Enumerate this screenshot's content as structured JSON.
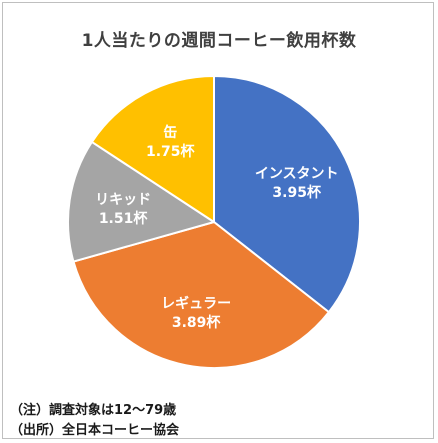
{
  "chart_data": {
    "type": "pie",
    "title": "1人当たりの週間コーヒー飲用杯数",
    "unit": "杯",
    "slices": [
      {
        "label": "インスタント",
        "value": 3.95,
        "value_label": "3.95杯",
        "color": "#4472c4"
      },
      {
        "label": "レギュラー",
        "value": 3.89,
        "value_label": "3.89杯",
        "color": "#ed7d31"
      },
      {
        "label": "リキッド",
        "value": 1.51,
        "value_label": "1.51杯",
        "color": "#a5a5a5"
      },
      {
        "label": "缶",
        "value": 1.75,
        "value_label": "1.75杯",
        "color": "#ffc000"
      }
    ],
    "start": "12 o'clock",
    "direction": "clockwise"
  },
  "notes": {
    "note1": "（注）調査対象は12～79歳",
    "note2": "（出所）全日本コーヒー協会"
  }
}
